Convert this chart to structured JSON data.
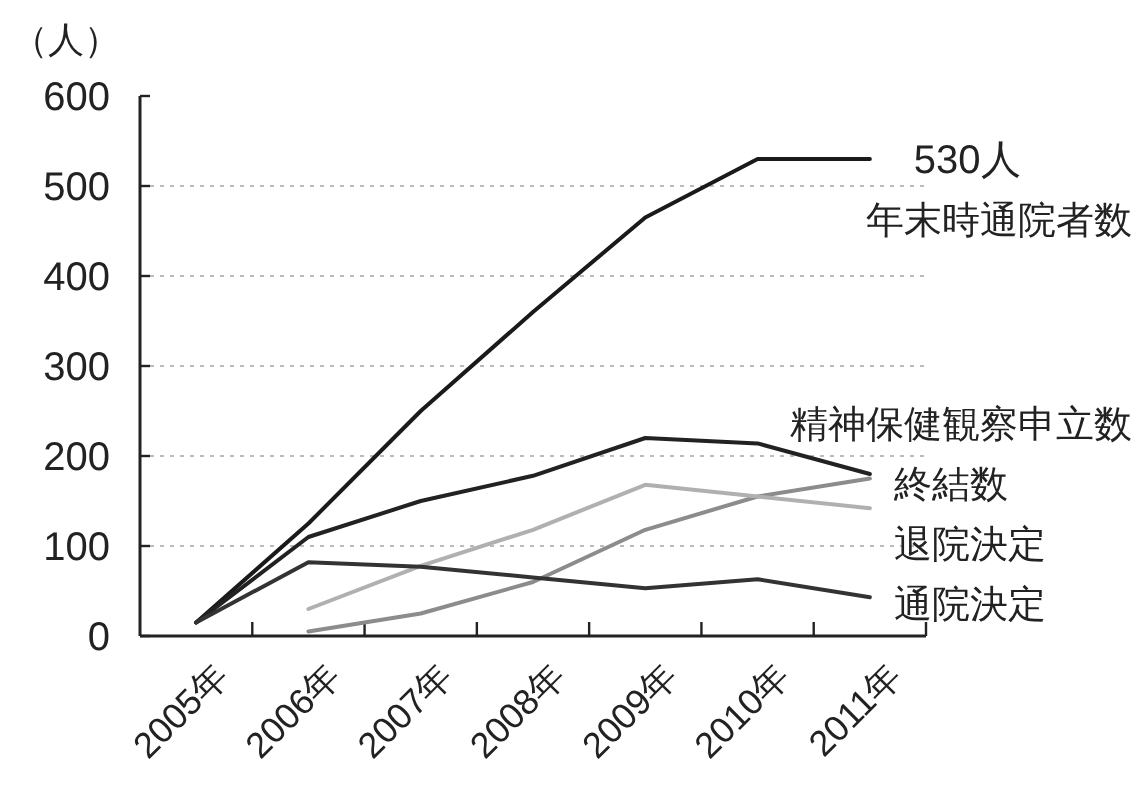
{
  "chart_data": {
    "type": "line",
    "ylabel": "（人）",
    "categories": [
      "2005年",
      "2006年",
      "2007年",
      "2008年",
      "2009年",
      "2010年",
      "2011年"
    ],
    "ylim": [
      0,
      600
    ],
    "yticks": [
      0,
      100,
      200,
      300,
      400,
      500,
      600
    ],
    "grid": "y",
    "line_style": "solid",
    "series": [
      {
        "name": "年末時通院者数",
        "color": "#1a1a1a",
        "values": [
          15,
          125,
          250,
          360,
          465,
          530,
          530
        ]
      },
      {
        "name": "精神保健観察申立数",
        "color": "#222222",
        "values": [
          15,
          110,
          150,
          178,
          220,
          214,
          180
        ]
      },
      {
        "name": "終結数",
        "color": "#8c8c8c",
        "values": [
          null,
          5,
          25,
          60,
          118,
          155,
          175
        ]
      },
      {
        "name": "退院決定",
        "color": "#b0b0b0",
        "values": [
          null,
          30,
          78,
          118,
          168,
          155,
          142
        ]
      },
      {
        "name": "通院決定",
        "color": "#333333",
        "values": [
          15,
          82,
          77,
          65,
          53,
          63,
          43
        ]
      }
    ],
    "annotations": [
      {
        "text": "530人",
        "x": "2011年",
        "y": 530
      }
    ]
  }
}
